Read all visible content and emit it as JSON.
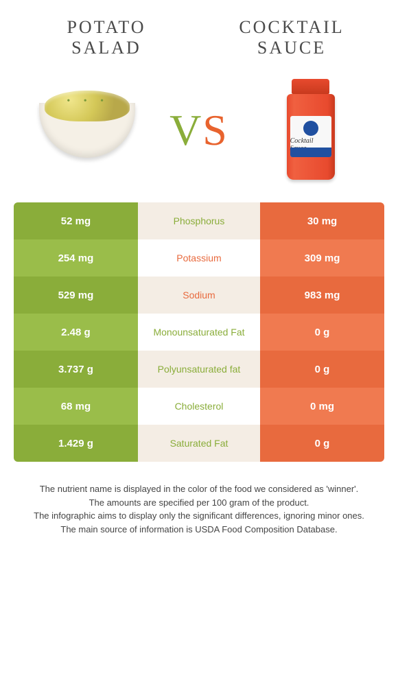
{
  "left_food": {
    "name_line1": "Potato",
    "name_line2": "salad",
    "color": "#8aad3a",
    "alt_color": "#9abd4a"
  },
  "right_food": {
    "name_line1": "Cocktail",
    "name_line2": "sauce",
    "color": "#e86a3e",
    "alt_color": "#f07a50"
  },
  "vs": {
    "v": "V",
    "s": "S",
    "v_color": "#8aad3a",
    "s_color": "#e8632e"
  },
  "jar_label": "Cocktail Sauce",
  "nutrients": [
    {
      "name": "Phosphorus",
      "left": "52 mg",
      "right": "30 mg",
      "winner": "left"
    },
    {
      "name": "Potassium",
      "left": "254 mg",
      "right": "309 mg",
      "winner": "right"
    },
    {
      "name": "Sodium",
      "left": "529 mg",
      "right": "983 mg",
      "winner": "right"
    },
    {
      "name": "Monounsaturated Fat",
      "left": "2.48 g",
      "right": "0 g",
      "winner": "left"
    },
    {
      "name": "Polyunsaturated fat",
      "left": "3.737 g",
      "right": "0 g",
      "winner": "left"
    },
    {
      "name": "Cholesterol",
      "left": "68 mg",
      "right": "0 mg",
      "winner": "left"
    },
    {
      "name": "Saturated Fat",
      "left": "1.429 g",
      "right": "0 g",
      "winner": "left"
    }
  ],
  "footer_lines": [
    "The nutrient name is displayed in the color of the food we considered as 'winner'.",
    "The amounts are specified per 100 gram of the product.",
    "The infographic aims to display only the significant differences, ignoring minor ones.",
    "The main source of information is USDA Food Composition Database."
  ],
  "mid_bg_colors": {
    "odd": "#f4ede4",
    "even": "#ffffff"
  }
}
